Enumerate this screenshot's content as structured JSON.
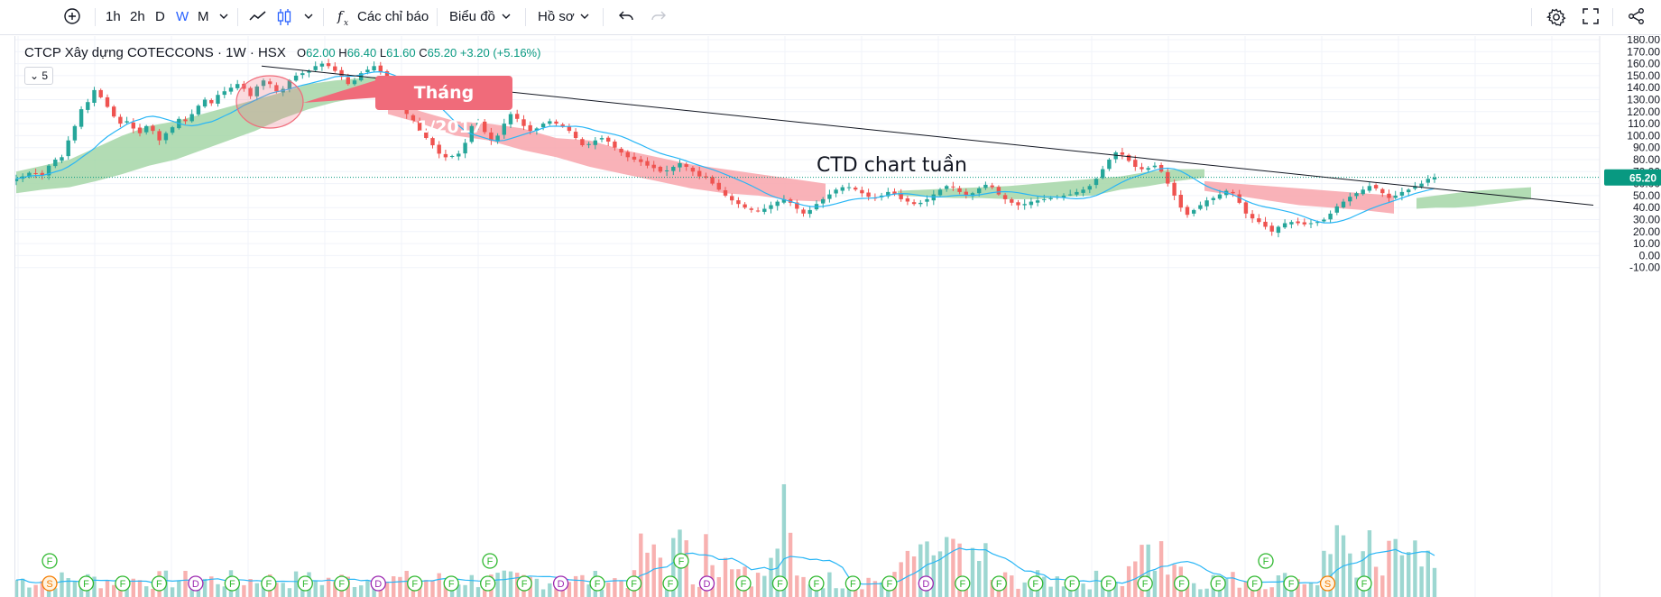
{
  "toolbar": {
    "intervals": [
      "1h",
      "2h",
      "D",
      "W",
      "M"
    ],
    "active_interval": "W",
    "indicators_label": "Các chỉ báo",
    "chart_label": "Biểu đồ",
    "profile_label": "Hồ sơ"
  },
  "legend": {
    "symbol": "CTCP Xây dựng COTECCONS · 1W · HSX",
    "open_label": "O",
    "open": "62.00",
    "high_label": "H",
    "high": "66.40",
    "low_label": "L",
    "low": "61.60",
    "close_label": "C",
    "close": "65.20",
    "change": "+3.20 (+5.16%)",
    "collapse_count": "5"
  },
  "annotations": {
    "note": "CTD chart tuần",
    "callout": "Tháng 11/2017"
  },
  "colors": {
    "up": "#26a69a",
    "down": "#ef5350",
    "cloud_bull": "#a5d6a7",
    "cloud_bear": "#f8a5ab",
    "ma_line": "#29b6f6",
    "accent": "#2962ff",
    "last_price_badge": "#089981"
  },
  "events": {
    "markers_top": [
      "F",
      "F",
      "F",
      "F"
    ],
    "markers_bottom": [
      "S",
      "F",
      "F",
      "F",
      "D",
      "F",
      "F",
      "F",
      "F",
      "D",
      "F",
      "F",
      "F",
      "F",
      "D",
      "F",
      "F",
      "F",
      "D",
      "F",
      "F",
      "F",
      "F",
      "F",
      "D",
      "F",
      "F",
      "F",
      "F",
      "F",
      "F",
      "F",
      "F",
      "F",
      "F",
      "S",
      "F"
    ]
  },
  "chart_data": {
    "type": "candlestick",
    "title": "",
    "interval": "1W",
    "y_axis": {
      "ticks": [
        "180.00",
        "170.00",
        "160.00",
        "150.00",
        "140.00",
        "130.00",
        "120.00",
        "110.00",
        "100.00",
        "90.00",
        "80.00",
        "70.00",
        "60.00",
        "50.00",
        "40.00",
        "30.00",
        "20.00",
        "10.00",
        "0.00",
        "-10.00"
      ],
      "range": [
        -14,
        185
      ]
    },
    "last_price": "65.20",
    "close_path": [
      64,
      66,
      69,
      68,
      67,
      75,
      80,
      82,
      96,
      108,
      122,
      128,
      138,
      132,
      124,
      116,
      110,
      112,
      106,
      102,
      108,
      104,
      96,
      102,
      107,
      114,
      112,
      118,
      125,
      130,
      127,
      134,
      137,
      140,
      143,
      139,
      133,
      141,
      146,
      143,
      137,
      139,
      146,
      150,
      152,
      154,
      158,
      160,
      158,
      154,
      149,
      143,
      146,
      152,
      155,
      158,
      153,
      141,
      132,
      124,
      118,
      112,
      104,
      98,
      92,
      85,
      82,
      83,
      85,
      94,
      108,
      112,
      103,
      96,
      100,
      110,
      118,
      114,
      108,
      104,
      106,
      110,
      112,
      110,
      108,
      104,
      98,
      92,
      93,
      96,
      98,
      95,
      90,
      86,
      82,
      80,
      78,
      75,
      73,
      70,
      71,
      74,
      77,
      74,
      70,
      66,
      65,
      60,
      55,
      50,
      46,
      43,
      40,
      38,
      37,
      39,
      42,
      45,
      47,
      44,
      39,
      35,
      38,
      43,
      47,
      51,
      55,
      57,
      57,
      55,
      52,
      49,
      48,
      50,
      53,
      51,
      47,
      45,
      43,
      44,
      47,
      51,
      55,
      58,
      57,
      53,
      50,
      52,
      56,
      59,
      57,
      51,
      47,
      44,
      42,
      43,
      45,
      46,
      47,
      48,
      49,
      50,
      51,
      53,
      55,
      58,
      64,
      72,
      80,
      86,
      84,
      79,
      74,
      72,
      73,
      75,
      70,
      60,
      50,
      40,
      34,
      38,
      42,
      46,
      48,
      51,
      54,
      52,
      44,
      35,
      31,
      28,
      24,
      20,
      24,
      27,
      28,
      27,
      26,
      27,
      28,
      30,
      35,
      41,
      45,
      49,
      52,
      55,
      58,
      56,
      52,
      48,
      50,
      53,
      55,
      58,
      60,
      64,
      65
    ],
    "cloud": {
      "segments": [
        {
          "type": "bull",
          "top": [
            70,
            75,
            80,
            90,
            100,
            108,
            112,
            118,
            124,
            130,
            136,
            143,
            146,
            148,
            150
          ],
          "bottom": [
            52,
            55,
            57,
            62,
            68,
            75,
            80,
            88,
            96,
            104,
            114,
            122,
            128,
            132,
            137
          ]
        },
        {
          "type": "bear",
          "top": [
            130,
            120,
            112,
            110,
            106,
            98,
            96,
            88,
            82,
            76,
            72,
            68,
            64,
            60
          ],
          "bottom": [
            118,
            110,
            100,
            96,
            88,
            82,
            74,
            68,
            62,
            56,
            52,
            50,
            46,
            45
          ]
        },
        {
          "type": "bull",
          "top": [
            54,
            55,
            56,
            57,
            58,
            60,
            62,
            64,
            66,
            70,
            72,
            72
          ],
          "bottom": [
            50,
            49,
            48,
            48,
            47,
            47,
            49,
            50,
            55,
            58,
            62,
            65
          ]
        },
        {
          "type": "bear",
          "top": [
            62,
            60,
            58,
            56,
            54,
            52,
            50
          ],
          "bottom": [
            54,
            50,
            46,
            42,
            40,
            38,
            35
          ]
        },
        {
          "type": "bull",
          "top": [
            48,
            50,
            52,
            54,
            55,
            56,
            57
          ],
          "bottom": [
            39,
            40,
            40,
            41,
            43,
            45,
            47
          ]
        }
      ]
    },
    "trendline": {
      "start_price": 158,
      "end_price": 42
    },
    "volume": {
      "ma_visible": true
    }
  }
}
